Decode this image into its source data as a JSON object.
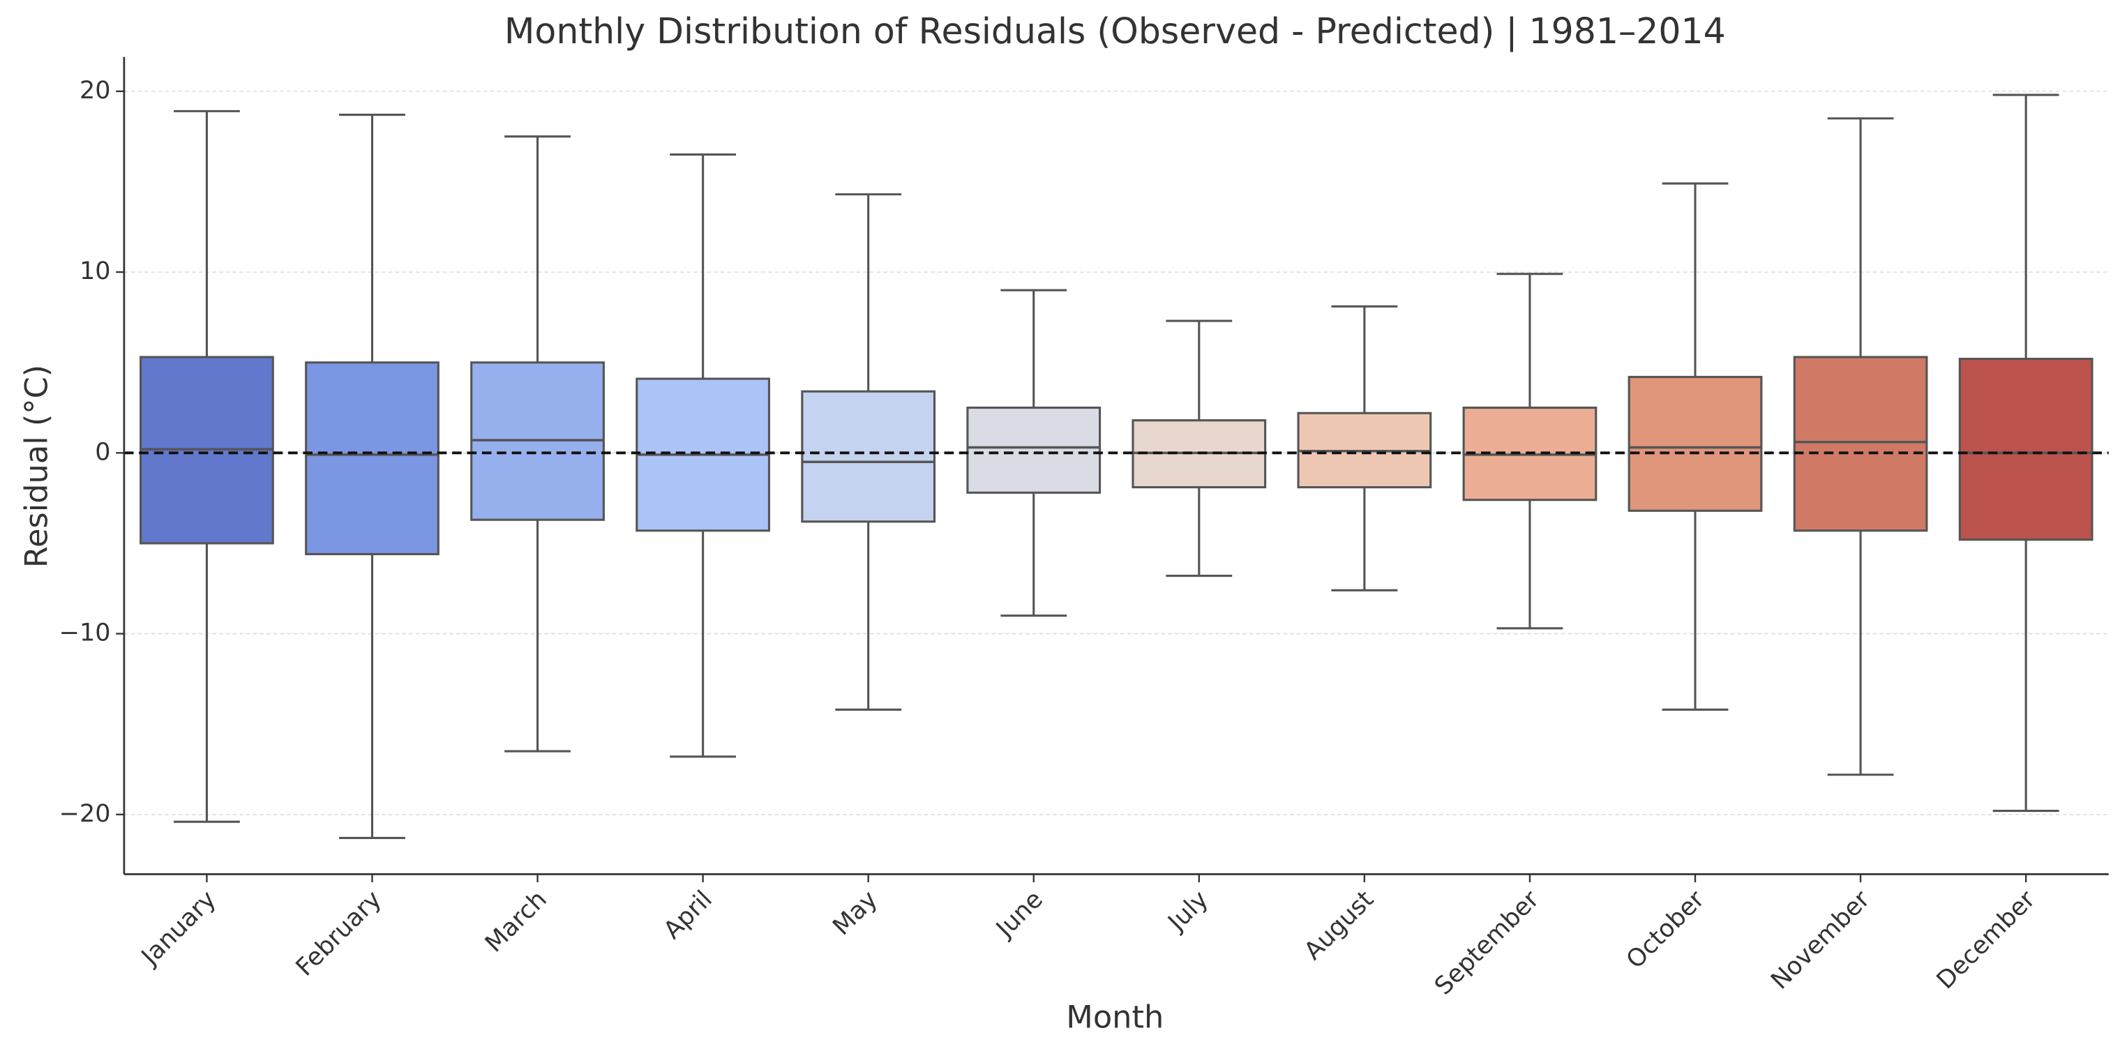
{
  "chart_data": {
    "type": "box",
    "title": "Monthly Distribution of Residuals (Observed - Predicted) | 1981–2014",
    "x_label": "Month",
    "y_label": "Residual (°C)",
    "categories": [
      "January",
      "February",
      "March",
      "April",
      "May",
      "June",
      "July",
      "August",
      "September",
      "October",
      "November",
      "December"
    ],
    "whisker_high": [
      18.9,
      18.7,
      17.5,
      16.5,
      14.3,
      9.0,
      7.3,
      8.1,
      9.9,
      14.9,
      18.5,
      19.8
    ],
    "q3": [
      5.3,
      5.0,
      5.0,
      4.1,
      3.4,
      2.5,
      1.8,
      2.2,
      2.5,
      4.2,
      5.3,
      5.2
    ],
    "median": [
      0.2,
      -0.1,
      0.7,
      -0.1,
      -0.5,
      0.3,
      0.0,
      0.1,
      -0.1,
      0.3,
      0.6,
      0.0
    ],
    "q1": [
      -5.0,
      -5.6,
      -3.7,
      -4.3,
      -3.8,
      -2.2,
      -1.9,
      -1.9,
      -2.6,
      -3.2,
      -4.3,
      -4.8
    ],
    "whisker_low": [
      -20.4,
      -21.3,
      -16.5,
      -16.8,
      -14.2,
      -9.0,
      -6.8,
      -7.6,
      -9.7,
      -14.2,
      -17.8,
      -19.8
    ],
    "colors": [
      "#6178cd",
      "#7b96e3",
      "#96b0ee",
      "#abc4f7",
      "#c4d3ef",
      "#d9dce5",
      "#e7d7ce",
      "#eec7b3",
      "#ebae95",
      "#df967b",
      "#d07a66",
      "#bc534c"
    ],
    "reference_line": 0,
    "ylim": [
      -23.3,
      21.9
    ],
    "yticks": [
      {
        "value": -20,
        "label": "−20"
      },
      {
        "value": -10,
        "label": "−10"
      },
      0,
      10,
      20
    ],
    "grid": true
  }
}
